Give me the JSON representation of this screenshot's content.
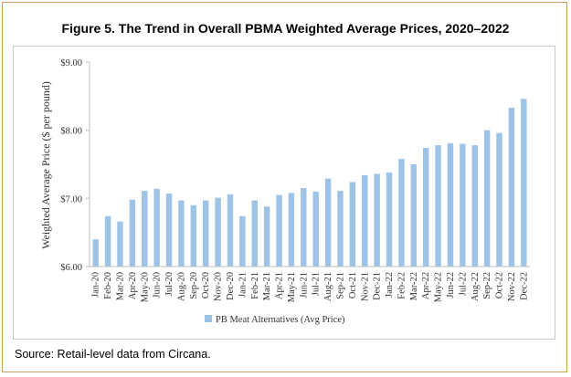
{
  "figure": {
    "title": "Figure 5. The Trend in Overall PBMA Weighted Average Prices, 2020–2022",
    "source": "Source: Retail-level data from Circana."
  },
  "colors": {
    "bar": "#9dc3e6",
    "frame": "#c9a15a",
    "axis": "#bfbfbf"
  },
  "chart_data": {
    "type": "bar",
    "title": "Figure 5. The Trend in Overall PBMA Weighted Average Prices, 2020–2022",
    "xlabel": "",
    "ylabel": "Weighted Average Price ($ per pound)",
    "ylim": [
      6.0,
      9.0
    ],
    "yticks": [
      "$6.00",
      "$7.00",
      "$8.00",
      "$9.00"
    ],
    "ytick_values": [
      6.0,
      7.0,
      8.0,
      9.0
    ],
    "grid": false,
    "legend_position": "bottom",
    "categories": [
      "Jan-20",
      "Feb-20",
      "Mar-20",
      "Apr-20",
      "May-20",
      "Jun-20",
      "Jul-20",
      "Aug-20",
      "Sep-20",
      "Oct-20",
      "Nov-20",
      "Dec-20",
      "Jan-21",
      "Feb-21",
      "Mar-21",
      "Apr-21",
      "May-21",
      "Jun-21",
      "Jul-21",
      "Aug-21",
      "Sep-21",
      "Oct-21",
      "Nov-21",
      "Dec-21",
      "Jan-22",
      "Feb-22",
      "Mar-22",
      "Apr-22",
      "May-22",
      "Jun-22",
      "Jul-22",
      "Aug-22",
      "Sep-22",
      "Oct-22",
      "Nov-22",
      "Dec-22"
    ],
    "series": [
      {
        "name": "PB Meat Alternatives (Avg Price)",
        "values": [
          6.4,
          6.74,
          6.66,
          6.98,
          7.11,
          7.14,
          7.07,
          6.97,
          6.9,
          6.97,
          7.01,
          7.06,
          6.74,
          6.97,
          6.88,
          7.05,
          7.08,
          7.15,
          7.1,
          7.29,
          7.11,
          7.24,
          7.34,
          7.36,
          7.38,
          7.58,
          7.5,
          7.74,
          7.78,
          7.81,
          7.8,
          7.78,
          8.0,
          7.96,
          8.33,
          8.46
        ]
      }
    ]
  }
}
